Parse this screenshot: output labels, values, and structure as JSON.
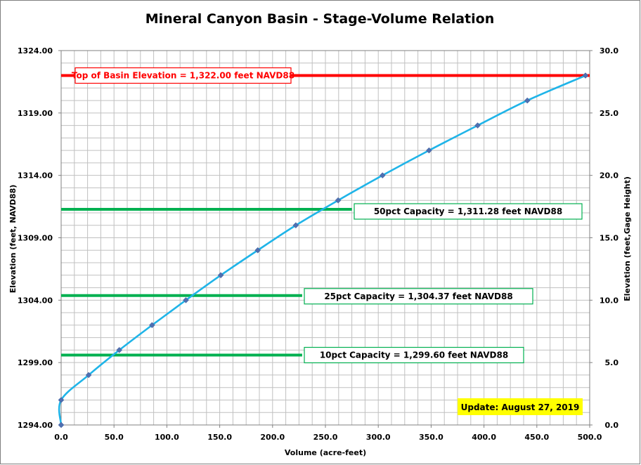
{
  "chart_data": {
    "type": "line",
    "title": "Mineral Canyon Basin - Stage-Volume Relation",
    "xlabel": "Volume (acre-feet)",
    "ylabel": "Elevation  (feet, NAVD88)",
    "y2label": "Elevation  (feet,Gage  Height)",
    "xlim": [
      0,
      500
    ],
    "ylim": [
      1294,
      1324
    ],
    "y2lim": [
      0,
      30
    ],
    "x_ticks": [
      "0.0",
      "50.0",
      "100.0",
      "150.0",
      "200.0",
      "250.0",
      "300.0",
      "350.0",
      "400.0",
      "450.0",
      "500.0"
    ],
    "y_ticks": [
      "1294.00",
      "1299.00",
      "1304.00",
      "1309.00",
      "1314.00",
      "1319.00",
      "1324.00"
    ],
    "y2_ticks": [
      "0.0",
      "5.0",
      "10.0",
      "15.0",
      "20.0",
      "25.0",
      "30.0"
    ],
    "grid": true,
    "series": [
      {
        "color": "#1FB4E8",
        "marker_color": "#4F6FB0",
        "points": [
          {
            "x": 0,
            "y": 1294.0
          },
          {
            "x": 0,
            "y": 1296.0
          },
          {
            "x": 26,
            "y": 1298.0
          },
          {
            "x": 55,
            "y": 1300.0
          },
          {
            "x": 86,
            "y": 1302.0
          },
          {
            "x": 118,
            "y": 1304.0
          },
          {
            "x": 151,
            "y": 1306.0
          },
          {
            "x": 186,
            "y": 1308.0
          },
          {
            "x": 222,
            "y": 1310.0
          },
          {
            "x": 262,
            "y": 1312.0
          },
          {
            "x": 304,
            "y": 1314.0
          },
          {
            "x": 348,
            "y": 1316.0
          },
          {
            "x": 394,
            "y": 1318.0
          },
          {
            "x": 441,
            "y": 1320.0
          },
          {
            "x": 496,
            "y": 1322.0
          }
        ]
      }
    ],
    "reference_lines": [
      {
        "y": 1322.0,
        "color": "#FF0000",
        "label": "Top of Basin Elevation = 1,322.00  feet NAVD88",
        "x_end": 500
      },
      {
        "y": 1311.28,
        "color": "#00B050",
        "label": "50pct Capacity = 1,311.28  feet NAVD88",
        "x_end": 275
      },
      {
        "y": 1304.37,
        "color": "#00B050",
        "label": "25pct Capacity = 1,304.37  feet NAVD88",
        "x_end": 228
      },
      {
        "y": 1299.6,
        "color": "#00B050",
        "label": "10pct Capacity = 1,299.60  feet NAVD88",
        "x_end": 228
      }
    ],
    "note": {
      "text": "Update: August 27, 2019",
      "background": "#FFFF00"
    }
  }
}
